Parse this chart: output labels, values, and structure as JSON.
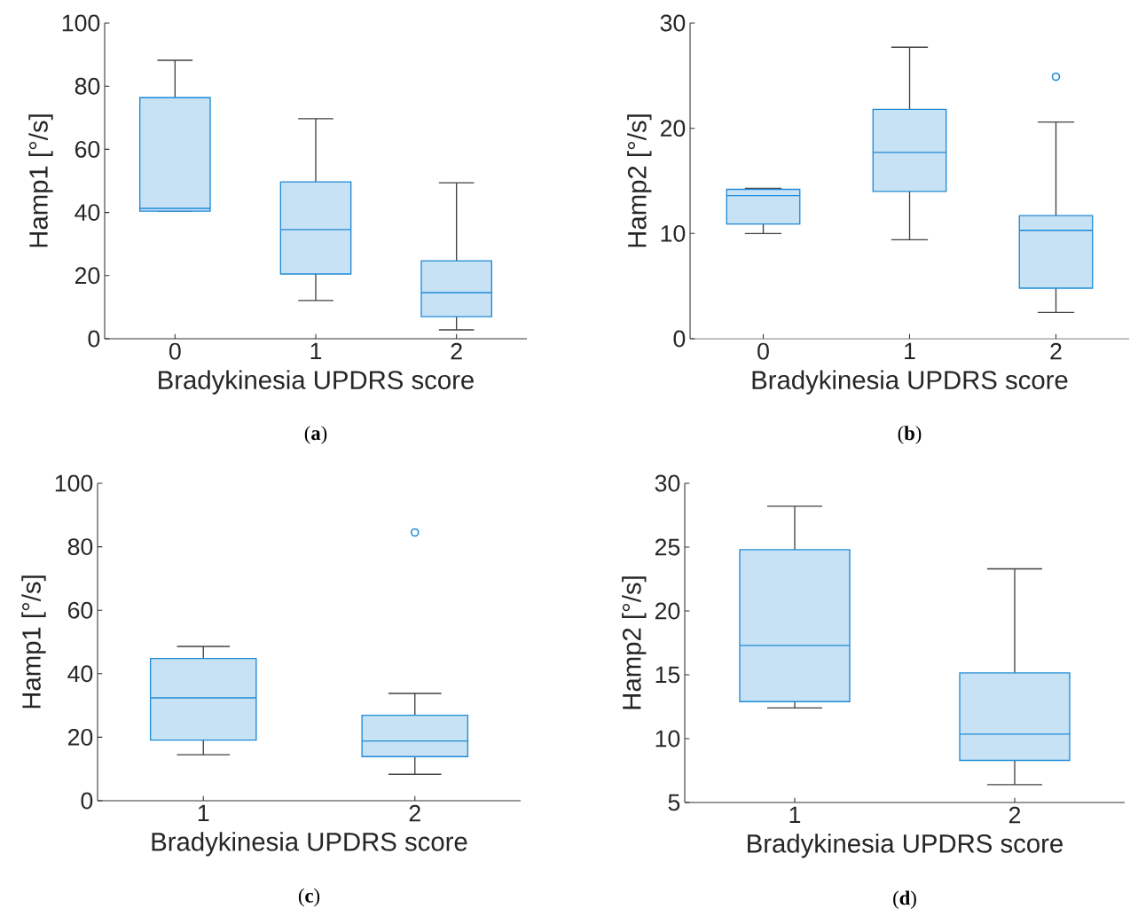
{
  "chart_data": [
    {
      "type": "box",
      "categories": [
        "0",
        "1",
        "2"
      ],
      "xlabel": "Bradykinesia UPDRS score",
      "ylabel": "Hamp1 [°/s]",
      "ylim": [
        0,
        100
      ],
      "yticks": [
        0,
        20,
        40,
        60,
        80,
        100
      ],
      "annotations": [
        "(**a**)"
      ],
      "series": [
        {
          "color": "#1f8ad6",
          "boxes": [
            {
              "low": 40.4,
              "q1": 40.4,
              "median": 41.3,
              "q3": 76.4,
              "high": 88.2
            },
            {
              "low": 12.1,
              "q1": 20.5,
              "median": 34.6,
              "q3": 49.7,
              "high": 69.7
            },
            {
              "low": 2.8,
              "q1": 7.0,
              "median": 14.6,
              "q3": 24.7,
              "high": 49.4
            }
          ]
        }
      ]
    },
    {
      "type": "box",
      "categories": [
        "0",
        "1",
        "2"
      ],
      "xlabel": "Bradykinesia UPDRS score",
      "ylabel": "Hamp2 [°/s]",
      "ylim": [
        0,
        30
      ],
      "yticks": [
        0,
        10,
        20,
        30
      ],
      "annotations": [
        "(**b**)"
      ],
      "series": [
        {
          "color": "#1f8ad6",
          "boxes": [
            {
              "low": 10.0,
              "q1": 10.9,
              "median": 13.6,
              "q3": 14.2,
              "high": 14.3
            },
            {
              "low": 9.4,
              "q1": 14.0,
              "median": 17.7,
              "q3": 21.8,
              "high": 27.7
            },
            {
              "low": 2.5,
              "q1": 4.8,
              "median": 10.3,
              "q3": 11.7,
              "high": 20.6,
              "outliers": [
                24.9
              ]
            }
          ]
        }
      ]
    },
    {
      "type": "box",
      "categories": [
        "1",
        "2"
      ],
      "xlabel": "Bradykinesia UPDRS score",
      "ylabel": "Hamp1 [°/s]",
      "ylim": [
        0,
        100
      ],
      "yticks": [
        0,
        20,
        40,
        60,
        80,
        100
      ],
      "annotations": [
        "(**c**)"
      ],
      "series": [
        {
          "color": "#1f8ad6",
          "boxes": [
            {
              "low": 14.5,
              "q1": 19.1,
              "median": 32.4,
              "q3": 44.8,
              "high": 48.6
            },
            {
              "low": 8.3,
              "q1": 13.9,
              "median": 18.8,
              "q3": 26.9,
              "high": 33.8,
              "outliers": [
                84.5
              ]
            }
          ]
        }
      ]
    },
    {
      "type": "box",
      "categories": [
        "1",
        "2"
      ],
      "xlabel": "Bradykinesia UPDRS score",
      "ylabel": "Hamp2 [°/s]",
      "ylim": [
        5,
        30
      ],
      "yticks": [
        5,
        10,
        15,
        20,
        25,
        30
      ],
      "annotations": [
        "(**d**)"
      ],
      "series": [
        {
          "color": "#1f8ad6",
          "boxes": [
            {
              "low": 12.4,
              "q1": 12.9,
              "median": 17.3,
              "q3": 24.8,
              "high": 28.2
            },
            {
              "low": 6.4,
              "q1": 8.3,
              "median": 10.35,
              "q3": 15.15,
              "high": 23.3
            }
          ]
        }
      ]
    }
  ]
}
